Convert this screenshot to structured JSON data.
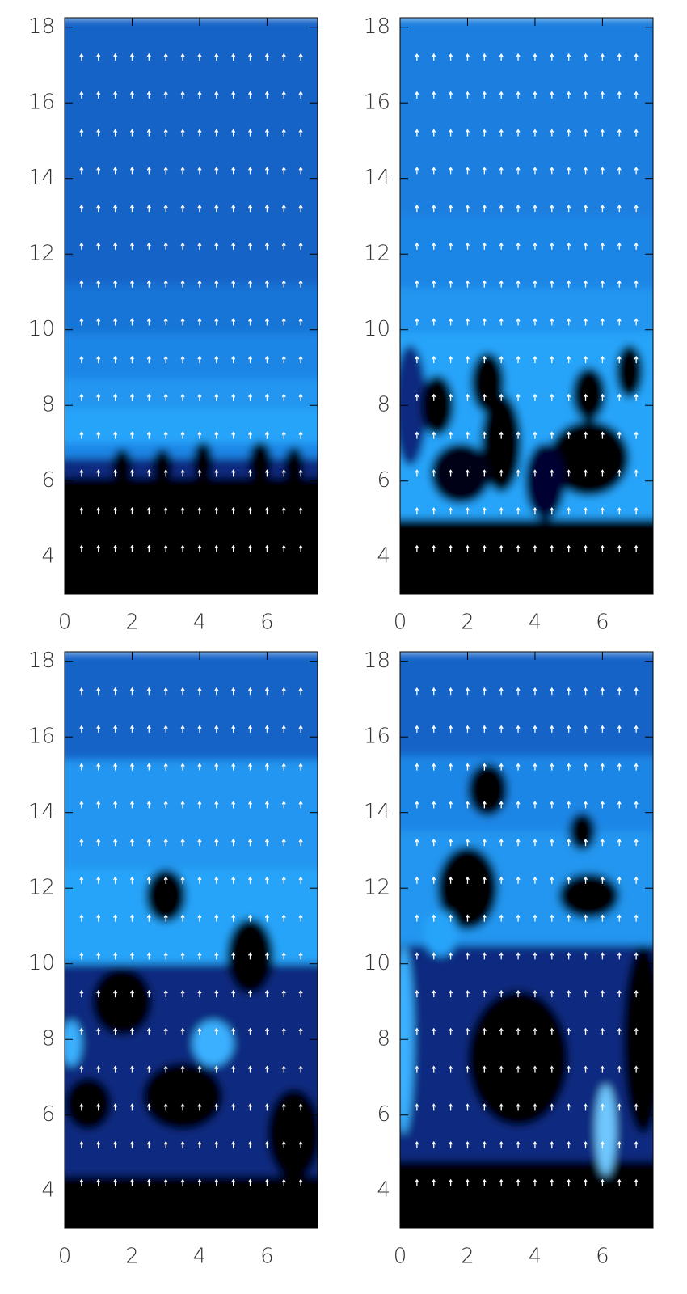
{
  "chart_data": [
    {
      "type": "contour",
      "xlim": [
        0,
        7.5
      ],
      "ylim": [
        3,
        18.25
      ],
      "xticks": [
        0,
        2,
        4,
        6
      ],
      "yticks": [
        4,
        6,
        8,
        10,
        12,
        14,
        16,
        18
      ],
      "layers": [
        {
          "color": "#1464c8",
          "top": 18.25
        },
        {
          "color": "#1675d6",
          "top": 11.2
        },
        {
          "color": "#1a86e6",
          "top": 9.9
        },
        {
          "color": "#2196f0",
          "top": 8.7
        },
        {
          "color": "#27a4fa",
          "top": 7.9
        },
        {
          "color": "#1a86e6",
          "top": 7.0
        },
        {
          "color": "#0a2a80",
          "top": 6.6
        },
        {
          "color": "#000000",
          "top": 6.1
        }
      ],
      "plumes": [
        {
          "x": 1.7,
          "y": 6.4,
          "rx": 0.3,
          "ry": 0.45,
          "color": "#000000"
        },
        {
          "x": 2.9,
          "y": 6.4,
          "rx": 0.3,
          "ry": 0.45,
          "color": "#000000"
        },
        {
          "x": 4.1,
          "y": 6.5,
          "rx": 0.3,
          "ry": 0.55,
          "color": "#000000"
        },
        {
          "x": 5.8,
          "y": 6.5,
          "rx": 0.35,
          "ry": 0.55,
          "color": "#000000"
        },
        {
          "x": 6.8,
          "y": 6.4,
          "rx": 0.3,
          "ry": 0.5,
          "color": "#000000"
        }
      ],
      "arrow_x": [
        0.5,
        1,
        1.5,
        2,
        2.5,
        3,
        3.5,
        4,
        4.5,
        5,
        5.5,
        6,
        6.5,
        7
      ],
      "arrow_y": [
        17.2,
        16.2,
        15.2,
        14.2,
        13.2,
        12.2,
        11.2,
        10.2,
        9.2,
        8.2,
        7.2,
        6.2,
        5.2,
        4.2
      ]
    },
    {
      "type": "contour",
      "xlim": [
        0,
        7.5
      ],
      "ylim": [
        3,
        18.25
      ],
      "xticks": [
        0,
        2,
        4,
        6
      ],
      "yticks": [
        4,
        6,
        8,
        10,
        12,
        14,
        16,
        18
      ],
      "layers": [
        {
          "color": "#1a7fe0",
          "top": 18.25
        },
        {
          "color": "#1a86e6",
          "top": 13.0
        },
        {
          "color": "#2196f0",
          "top": 11.1
        },
        {
          "color": "#27a4fa",
          "top": 9.9
        },
        {
          "color": "#000000",
          "top": 5.0
        }
      ],
      "plumes": [
        {
          "x": 0.3,
          "y": 8.0,
          "rx": 0.5,
          "ry": 1.6,
          "color": "#0a2a80"
        },
        {
          "x": 1.1,
          "y": 8.0,
          "rx": 0.5,
          "ry": 0.8,
          "color": "#000000"
        },
        {
          "x": 2.6,
          "y": 8.6,
          "rx": 0.5,
          "ry": 0.8,
          "color": "#000000"
        },
        {
          "x": 3.0,
          "y": 7.0,
          "rx": 0.6,
          "ry": 1.3,
          "color": "#000000"
        },
        {
          "x": 1.8,
          "y": 6.2,
          "rx": 0.9,
          "ry": 0.8,
          "color": "#000018"
        },
        {
          "x": 5.6,
          "y": 8.3,
          "rx": 0.5,
          "ry": 0.7,
          "color": "#000000"
        },
        {
          "x": 6.8,
          "y": 8.9,
          "rx": 0.4,
          "ry": 0.7,
          "color": "#000000"
        },
        {
          "x": 5.6,
          "y": 6.6,
          "rx": 1.2,
          "ry": 1.0,
          "color": "#000000"
        },
        {
          "x": 4.3,
          "y": 6.0,
          "rx": 0.6,
          "ry": 1.0,
          "color": "#000030"
        }
      ],
      "arrow_x": [
        0.5,
        1,
        1.5,
        2,
        2.5,
        3,
        3.5,
        4,
        4.5,
        5,
        5.5,
        6,
        6.5,
        7
      ],
      "arrow_y": [
        17.2,
        16.2,
        15.2,
        14.2,
        13.2,
        12.2,
        11.2,
        10.2,
        9.2,
        8.2,
        7.2,
        6.2,
        5.2,
        4.2
      ]
    },
    {
      "type": "contour",
      "xlim": [
        0,
        7.5
      ],
      "ylim": [
        3,
        18.25
      ],
      "xticks": [
        0,
        2,
        4,
        6
      ],
      "yticks": [
        4,
        6,
        8,
        10,
        12,
        14,
        16,
        18
      ],
      "layers": [
        {
          "color": "#1464c8",
          "top": 18.25
        },
        {
          "color": "#2196f0",
          "top": 15.4
        },
        {
          "color": "#27a4fa",
          "top": 12.5
        },
        {
          "color": "#0a2a80",
          "top": 10.0
        },
        {
          "color": "#000000",
          "top": 4.4
        }
      ],
      "plumes": [
        {
          "x": 3.0,
          "y": 11.8,
          "rx": 0.6,
          "ry": 0.7,
          "color": "#000000"
        },
        {
          "x": 5.5,
          "y": 10.2,
          "rx": 0.7,
          "ry": 1.0,
          "color": "#000000"
        },
        {
          "x": 1.7,
          "y": 9.0,
          "rx": 0.9,
          "ry": 0.9,
          "color": "#000000"
        },
        {
          "x": 3.5,
          "y": 6.5,
          "rx": 1.2,
          "ry": 0.9,
          "color": "#000000"
        },
        {
          "x": 0.7,
          "y": 6.3,
          "rx": 0.7,
          "ry": 0.7,
          "color": "#000000"
        },
        {
          "x": 4.4,
          "y": 7.9,
          "rx": 0.6,
          "ry": 0.6,
          "color": "#3ab0ff"
        },
        {
          "x": 0.2,
          "y": 7.9,
          "rx": 0.3,
          "ry": 0.6,
          "color": "#3ab0ff"
        },
        {
          "x": 6.8,
          "y": 5.5,
          "rx": 0.8,
          "ry": 1.2,
          "color": "#000000"
        }
      ],
      "arrow_x": [
        0.5,
        1,
        1.5,
        2,
        2.5,
        3,
        3.5,
        4,
        4.5,
        5,
        5.5,
        6,
        6.5,
        7
      ],
      "arrow_y": [
        17.2,
        16.2,
        15.2,
        14.2,
        13.2,
        12.2,
        11.2,
        10.2,
        9.2,
        8.2,
        7.2,
        6.2,
        5.2,
        4.2
      ]
    },
    {
      "type": "contour",
      "xlim": [
        0,
        7.5
      ],
      "ylim": [
        3,
        18.25
      ],
      "xticks": [
        0,
        2,
        4,
        6
      ],
      "yticks": [
        4,
        6,
        8,
        10,
        12,
        14,
        16,
        18
      ],
      "layers": [
        {
          "color": "#1464c8",
          "top": 18.25
        },
        {
          "color": "#1a86e6",
          "top": 15.5
        },
        {
          "color": "#2196f0",
          "top": 13.5
        },
        {
          "color": "#0a2a80",
          "top": 10.5
        },
        {
          "color": "#000000",
          "top": 4.8
        }
      ],
      "plumes": [
        {
          "x": 2.6,
          "y": 14.6,
          "rx": 0.6,
          "ry": 0.7,
          "color": "#000000"
        },
        {
          "x": 2.0,
          "y": 12.0,
          "rx": 0.9,
          "ry": 1.1,
          "color": "#000000"
        },
        {
          "x": 5.4,
          "y": 13.5,
          "rx": 0.4,
          "ry": 0.5,
          "color": "#000000"
        },
        {
          "x": 5.6,
          "y": 11.8,
          "rx": 0.9,
          "ry": 0.6,
          "color": "#000000"
        },
        {
          "x": 3.5,
          "y": 7.5,
          "rx": 1.5,
          "ry": 1.8,
          "color": "#000000"
        },
        {
          "x": 7.2,
          "y": 8.0,
          "rx": 0.6,
          "ry": 2.5,
          "color": "#000000"
        },
        {
          "x": 0.1,
          "y": 8.0,
          "rx": 0.3,
          "ry": 2.5,
          "color": "#3ab0ff"
        },
        {
          "x": 6.1,
          "y": 5.6,
          "rx": 0.3,
          "ry": 1.2,
          "color": "#6fc8ff"
        },
        {
          "x": 1.2,
          "y": 10.8,
          "rx": 0.5,
          "ry": 0.6,
          "color": "#27a4fa"
        }
      ],
      "arrow_x": [
        0.5,
        1,
        1.5,
        2,
        2.5,
        3,
        3.5,
        4,
        4.5,
        5,
        5.5,
        6,
        6.5,
        7
      ],
      "arrow_y": [
        17.2,
        16.2,
        15.2,
        14.2,
        13.2,
        12.2,
        11.2,
        10.2,
        9.2,
        8.2,
        7.2,
        6.2,
        5.2,
        4.2
      ]
    }
  ]
}
